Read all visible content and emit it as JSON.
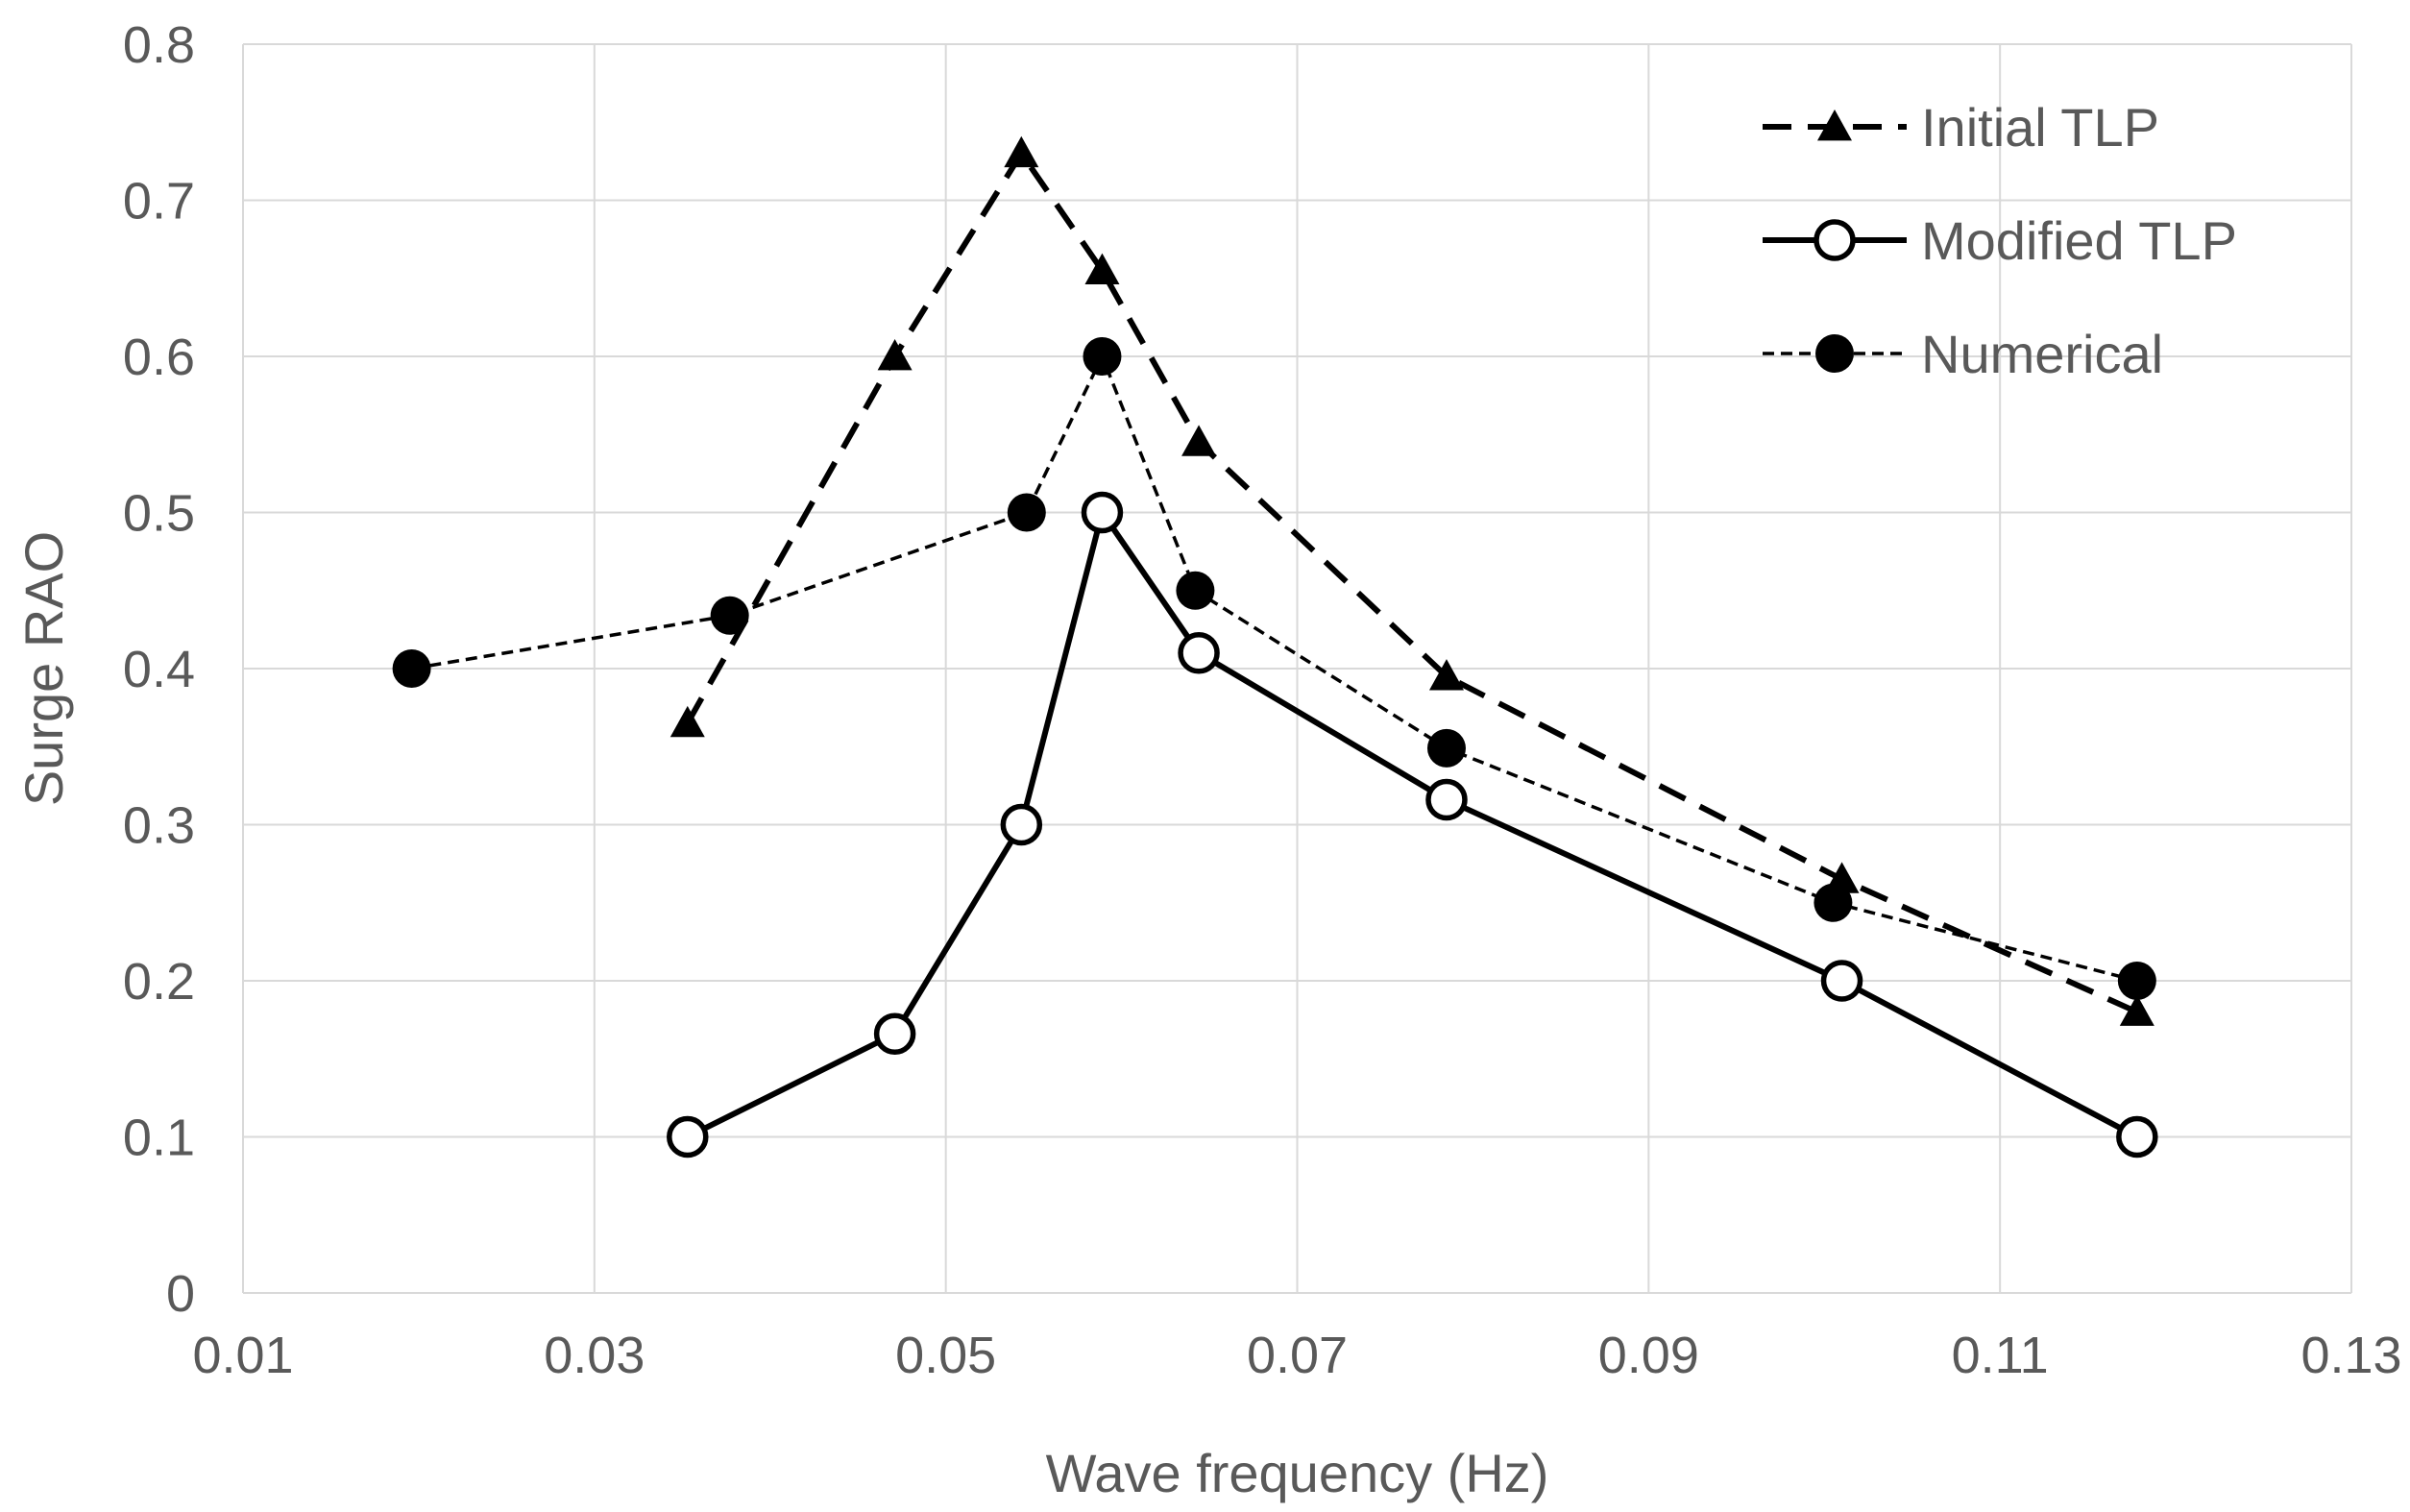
{
  "chart_data": {
    "type": "line",
    "title": "",
    "xlabel": "Wave frequency (Hz)",
    "ylabel": "Surge RAO",
    "xlim": [
      0.01,
      0.13
    ],
    "ylim": [
      0,
      0.8
    ],
    "xticks": [
      0.01,
      0.03,
      0.05,
      0.07,
      0.09,
      0.11,
      0.13
    ],
    "xtick_labels": [
      "0.01",
      "0.03",
      "0.05",
      "0.07",
      "0.09",
      "0.11",
      "0.13"
    ],
    "yticks": [
      0,
      0.1,
      0.2,
      0.3,
      0.4,
      0.5,
      0.6,
      0.7,
      0.8
    ],
    "ytick_labels": [
      "0",
      "0.1",
      "0.2",
      "0.3",
      "0.4",
      "0.5",
      "0.6",
      "0.7",
      "0.8"
    ],
    "grid": true,
    "legend_position": "top-right",
    "series": [
      {
        "name": "Initial TLP",
        "line_style": "dashed",
        "marker": "triangle",
        "color": "#000000",
        "x": [
          0.0353,
          0.0471,
          0.0543,
          0.0589,
          0.0644,
          0.0785,
          0.101,
          0.1178
        ],
        "y": [
          0.365,
          0.6,
          0.73,
          0.655,
          0.545,
          0.395,
          0.265,
          0.18
        ]
      },
      {
        "name": "Modified TLP",
        "line_style": "solid",
        "marker": "open-circle",
        "color": "#000000",
        "x": [
          0.0353,
          0.0471,
          0.0543,
          0.0589,
          0.0644,
          0.0785,
          0.101,
          0.1178
        ],
        "y": [
          0.1,
          0.166,
          0.3,
          0.5,
          0.41,
          0.316,
          0.2,
          0.1
        ]
      },
      {
        "name": "Numerical",
        "line_style": "dotted",
        "marker": "filled-circle",
        "color": "#000000",
        "x": [
          0.0196,
          0.0377,
          0.0546,
          0.0589,
          0.0642,
          0.0785,
          0.1005,
          0.1178
        ],
        "y": [
          0.4,
          0.434,
          0.5,
          0.6,
          0.45,
          0.349,
          0.25,
          0.2
        ]
      }
    ]
  }
}
